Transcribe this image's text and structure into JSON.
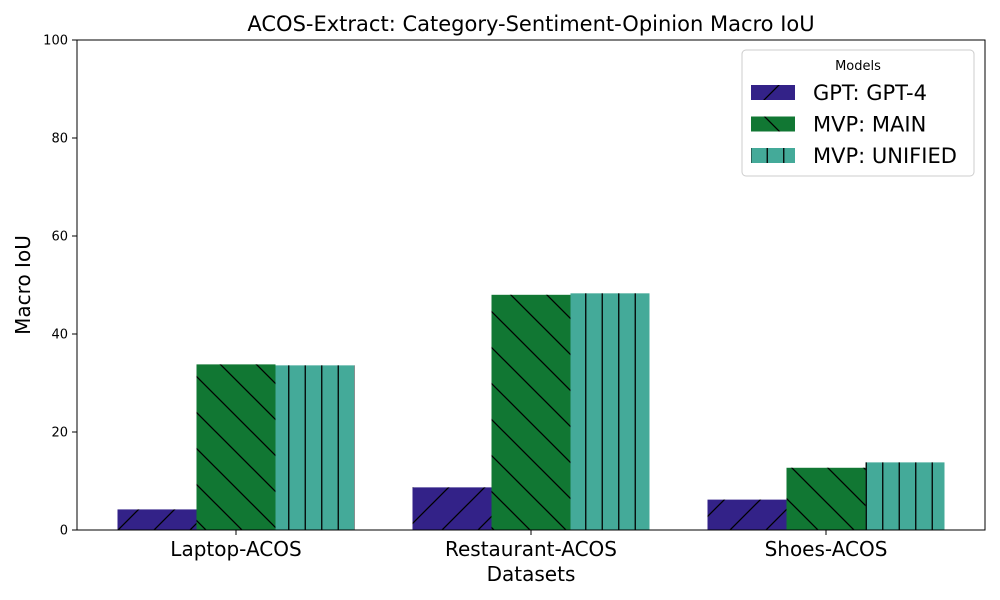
{
  "chart_data": {
    "type": "bar",
    "title": "ACOS-Extract: Category-Sentiment-Opinion Macro IoU",
    "xlabel": "Datasets",
    "ylabel": "Macro IoU",
    "ylim": [
      0,
      100
    ],
    "yticks": [
      "0",
      "20",
      "40",
      "60",
      "80",
      "100"
    ],
    "categories": [
      "Laptop-ACOS",
      "Restaurant-ACOS",
      "Shoes-ACOS"
    ],
    "series": [
      {
        "name": "GPT: GPT-4",
        "color": "#332288",
        "hatch": "/",
        "values": [
          4.2,
          8.7,
          6.2
        ]
      },
      {
        "name": "MVP: MAIN",
        "color": "#117733",
        "hatch": "\\",
        "values": [
          33.8,
          48.0,
          12.7
        ]
      },
      {
        "name": "MVP: UNIFIED",
        "color": "#44AA99",
        "hatch": "|",
        "values": [
          33.6,
          48.3,
          13.8
        ]
      }
    ],
    "legend": {
      "title": "Models",
      "position": "top-right"
    },
    "grid": false
  }
}
